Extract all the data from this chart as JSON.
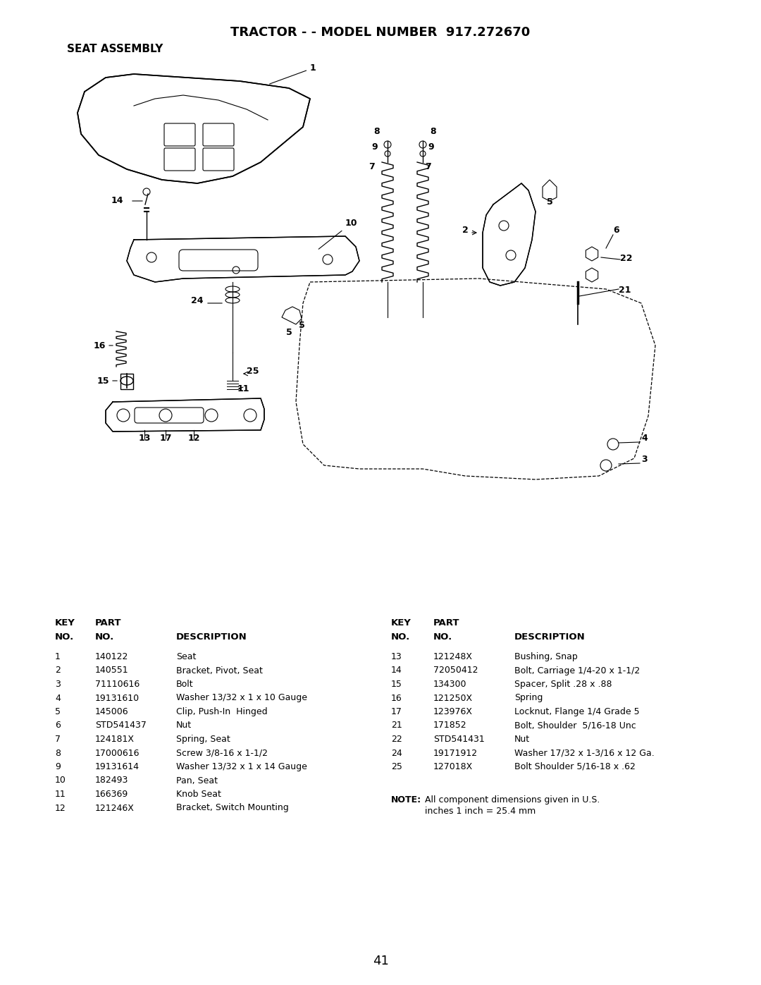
{
  "title": "TRACTOR - - MODEL NUMBER  917.272670",
  "subtitle": "SEAT ASSEMBLY",
  "page_number": "41",
  "background_color": "#ffffff",
  "text_color": "#000000",
  "left_table": {
    "rows": [
      [
        "1",
        "140122",
        "Seat"
      ],
      [
        "2",
        "140551",
        "Bracket, Pivot, Seat"
      ],
      [
        "3",
        "71110616",
        "Bolt"
      ],
      [
        "4",
        "19131610",
        "Washer 13/32 x 1 x 10 Gauge"
      ],
      [
        "5",
        "145006",
        "Clip, Push-In  Hinged"
      ],
      [
        "6",
        "STD541437",
        "Nut"
      ],
      [
        "7",
        "124181X",
        "Spring, Seat"
      ],
      [
        "8",
        "17000616",
        "Screw 3/8-16 x 1-1/2"
      ],
      [
        "9",
        "19131614",
        "Washer 13/32 x 1 x 14 Gauge"
      ],
      [
        "10",
        "182493",
        "Pan, Seat"
      ],
      [
        "11",
        "166369",
        "Knob Seat"
      ],
      [
        "12",
        "121246X",
        "Bracket, Switch Mounting"
      ]
    ]
  },
  "right_table": {
    "rows": [
      [
        "13",
        "121248X",
        "Bushing, Snap"
      ],
      [
        "14",
        "72050412",
        "Bolt, Carriage 1/4-20 x 1-1/2"
      ],
      [
        "15",
        "134300",
        "Spacer, Split .28 x .88"
      ],
      [
        "16",
        "121250X",
        "Spring"
      ],
      [
        "17",
        "123976X",
        "Locknut, Flange 1/4 Grade 5"
      ],
      [
        "21",
        "171852",
        "Bolt, Shoulder  5/16-18 Unc"
      ],
      [
        "22",
        "STD541431",
        "Nut"
      ],
      [
        "24",
        "19171912",
        "Washer 17/32 x 1-3/16 x 12 Ga."
      ],
      [
        "25",
        "127018X",
        "Bolt Shoulder 5/16-18 x .62"
      ]
    ]
  },
  "title_fontsize": 13,
  "subtitle_fontsize": 11,
  "header_fontsize": 9.5,
  "body_fontsize": 9,
  "note_fontsize": 9,
  "page_fontsize": 13
}
